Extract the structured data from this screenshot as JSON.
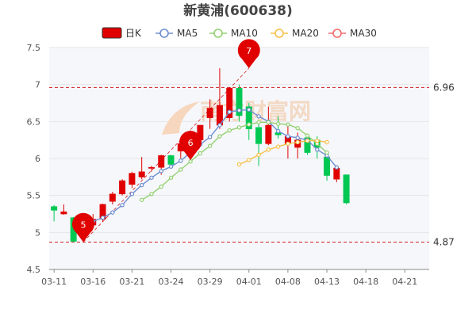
{
  "chart_data": {
    "type": "candlestick",
    "title": "新黄浦(600638)",
    "legend": [
      {
        "name": "日K",
        "color": "#e00000",
        "style": "candle"
      },
      {
        "name": "MA5",
        "color": "#6f8fd0",
        "style": "line"
      },
      {
        "name": "MA10",
        "color": "#93d070",
        "style": "line"
      },
      {
        "name": "MA20",
        "color": "#f5c14c",
        "style": "line"
      },
      {
        "name": "MA30",
        "color": "#f06a6a",
        "style": "line"
      }
    ],
    "ylim": [
      4.5,
      7.5
    ],
    "yticks": [
      4.5,
      5,
      5.5,
      6,
      6.5,
      7,
      7.5
    ],
    "xtick_labels": [
      {
        "i": 0,
        "label": "03-11"
      },
      {
        "i": 4,
        "label": "03-16"
      },
      {
        "i": 8,
        "label": "03-21"
      },
      {
        "i": 12,
        "label": "03-24"
      },
      {
        "i": 16,
        "label": "03-29"
      },
      {
        "i": 20,
        "label": "04-01"
      },
      {
        "i": 24,
        "label": "04-08"
      },
      {
        "i": 28,
        "label": "04-13"
      },
      {
        "i": 32,
        "label": "04-18"
      },
      {
        "i": 36,
        "label": "04-21"
      }
    ],
    "candles": [
      {
        "o": 5.35,
        "h": 5.37,
        "l": 5.15,
        "c": 5.3
      },
      {
        "o": 5.25,
        "h": 5.38,
        "l": 5.24,
        "c": 5.28
      },
      {
        "o": 5.2,
        "h": 5.21,
        "l": 4.87,
        "c": 4.88
      },
      {
        "o": 4.95,
        "h": 5.22,
        "l": 4.88,
        "c": 5.18
      },
      {
        "o": 5.1,
        "h": 5.25,
        "l": 5.07,
        "c": 5.18
      },
      {
        "o": 5.18,
        "h": 5.39,
        "l": 5.14,
        "c": 5.38
      },
      {
        "o": 5.42,
        "h": 5.55,
        "l": 5.38,
        "c": 5.52
      },
      {
        "o": 5.52,
        "h": 5.72,
        "l": 5.5,
        "c": 5.7
      },
      {
        "o": 5.65,
        "h": 5.82,
        "l": 5.6,
        "c": 5.8
      },
      {
        "o": 5.75,
        "h": 6.02,
        "l": 5.72,
        "c": 5.82
      },
      {
        "o": 5.88,
        "h": 5.9,
        "l": 5.82,
        "c": 5.88
      },
      {
        "o": 5.88,
        "h": 6.05,
        "l": 5.78,
        "c": 6.04
      },
      {
        "o": 6.04,
        "h": 6.05,
        "l": 5.9,
        "c": 5.92
      },
      {
        "o": 6.1,
        "h": 6.27,
        "l": 6.0,
        "c": 6.2
      },
      {
        "o": 6.1,
        "h": 6.38,
        "l": 6.08,
        "c": 6.35
      },
      {
        "o": 6.25,
        "h": 6.45,
        "l": 6.22,
        "c": 6.45
      },
      {
        "o": 6.55,
        "h": 6.8,
        "l": 6.4,
        "c": 6.68
      },
      {
        "o": 6.45,
        "h": 7.22,
        "l": 6.4,
        "c": 6.72
      },
      {
        "o": 6.55,
        "h": 6.96,
        "l": 6.5,
        "c": 6.95
      },
      {
        "o": 6.95,
        "h": 7.0,
        "l": 6.5,
        "c": 6.58
      },
      {
        "o": 6.7,
        "h": 6.75,
        "l": 6.25,
        "c": 6.4
      },
      {
        "o": 6.42,
        "h": 6.48,
        "l": 5.9,
        "c": 6.2
      },
      {
        "o": 6.2,
        "h": 6.7,
        "l": 6.18,
        "c": 6.45
      },
      {
        "o": 6.35,
        "h": 6.57,
        "l": 6.27,
        "c": 6.32
      },
      {
        "o": 6.2,
        "h": 6.47,
        "l": 6.0,
        "c": 6.3
      },
      {
        "o": 6.15,
        "h": 6.35,
        "l": 6.0,
        "c": 6.25
      },
      {
        "o": 6.28,
        "h": 6.32,
        "l": 6.05,
        "c": 6.08
      },
      {
        "o": 6.25,
        "h": 6.3,
        "l": 6.0,
        "c": 6.15
      },
      {
        "o": 6.02,
        "h": 6.05,
        "l": 5.7,
        "c": 5.77
      },
      {
        "o": 5.72,
        "h": 5.9,
        "l": 5.68,
        "c": 5.87
      },
      {
        "o": 5.78,
        "h": 5.78,
        "l": 5.38,
        "c": 5.4
      }
    ],
    "candle_index_map": [
      0,
      1,
      2,
      3,
      4,
      5,
      6,
      7,
      8,
      9,
      10,
      11,
      12,
      13,
      14,
      15,
      16,
      17,
      18,
      19,
      20,
      21,
      22,
      23,
      24,
      25,
      26,
      27,
      28,
      29,
      30
    ],
    "ma5": [
      null,
      null,
      null,
      null,
      5.15,
      5.2,
      5.27,
      5.37,
      5.52,
      5.64,
      5.74,
      5.83,
      5.89,
      5.97,
      6.08,
      6.19,
      6.29,
      6.45,
      6.63,
      6.65,
      6.66,
      6.57,
      6.5,
      6.37,
      6.3,
      6.28,
      6.25,
      6.12,
      6.04,
      5.88
    ],
    "ma10": [
      null,
      null,
      null,
      null,
      null,
      null,
      null,
      null,
      null,
      5.44,
      5.52,
      5.62,
      5.74,
      5.85,
      5.96,
      6.07,
      6.17,
      6.3,
      6.38,
      6.42,
      6.46,
      6.49,
      6.49,
      6.47,
      6.46,
      6.41,
      6.31,
      6.2,
      6.08
    ],
    "ma20": [
      null,
      null,
      null,
      null,
      null,
      null,
      null,
      null,
      null,
      null,
      null,
      null,
      null,
      null,
      null,
      null,
      null,
      null,
      null,
      5.92,
      5.98,
      6.05,
      6.12,
      6.16,
      6.2,
      6.22,
      6.24,
      6.24,
      6.22
    ],
    "ma30": [],
    "ref_lines": [
      {
        "value": 6.96,
        "label": "6.96",
        "color": "#d02020"
      },
      {
        "value": 4.87,
        "label": "4.87",
        "color": "#d02020"
      }
    ],
    "markers": [
      {
        "label": "5",
        "i": 3,
        "value": 4.87
      },
      {
        "label": "6",
        "i": 14,
        "value": 5.98
      },
      {
        "label": "7",
        "i": 20,
        "value": 7.22
      }
    ],
    "colors": {
      "up": "#e00000",
      "down": "#00c853",
      "grid": "#e6e6e6",
      "plot_bg": "#f6f7fb"
    },
    "watermark": "南方财富网"
  }
}
